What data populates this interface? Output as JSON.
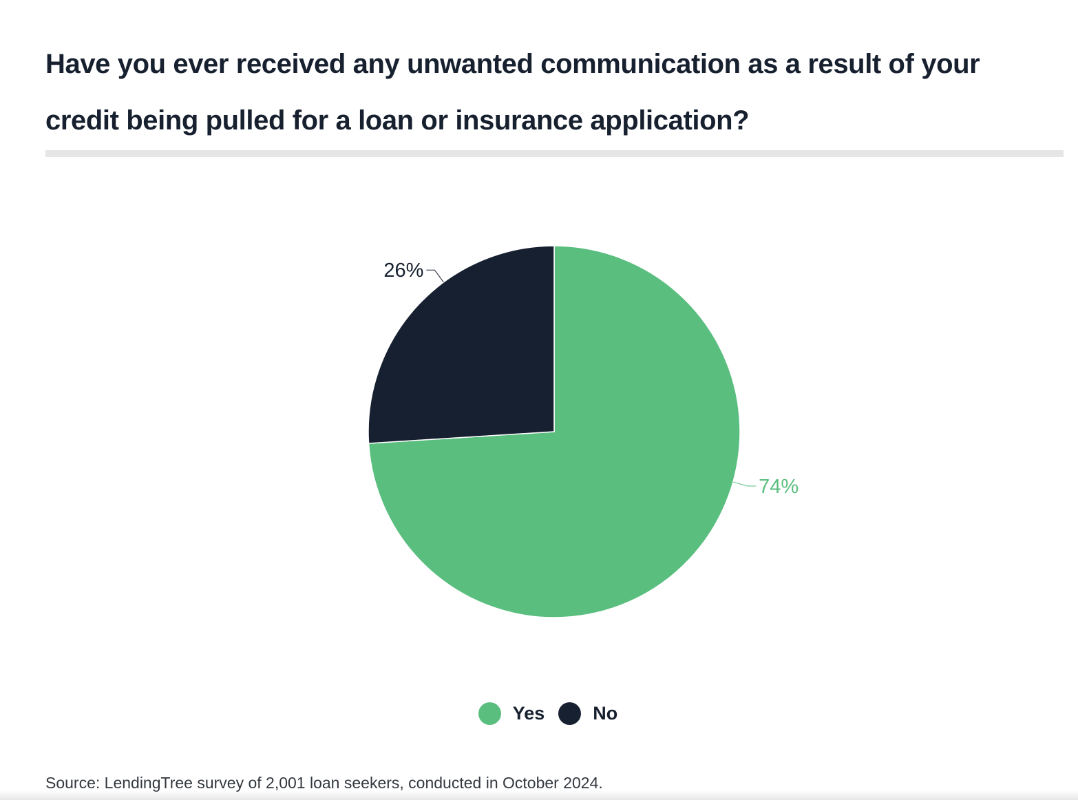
{
  "chart_data": {
    "type": "pie",
    "title": "Have you ever received any unwanted communication as a result of your credit being pulled for a loan or insurance application?",
    "slices": [
      {
        "name": "Yes",
        "value": 74,
        "label": "74%",
        "color": "#5abe7f"
      },
      {
        "name": "No",
        "value": 26,
        "label": "26%",
        "color": "#172031"
      }
    ],
    "legend": {
      "placement": "bottom-center",
      "items": [
        {
          "label": "Yes",
          "color": "#5abe7f"
        },
        {
          "label": "No",
          "color": "#172031"
        }
      ]
    },
    "source": "Source: LendingTree survey of 2,001 loan seekers, conducted in October 2024."
  },
  "colors": {
    "title": "#17202f",
    "rule": "#e6e6e6",
    "no_label": "#17202f",
    "yes_label": "#5abe7f"
  }
}
